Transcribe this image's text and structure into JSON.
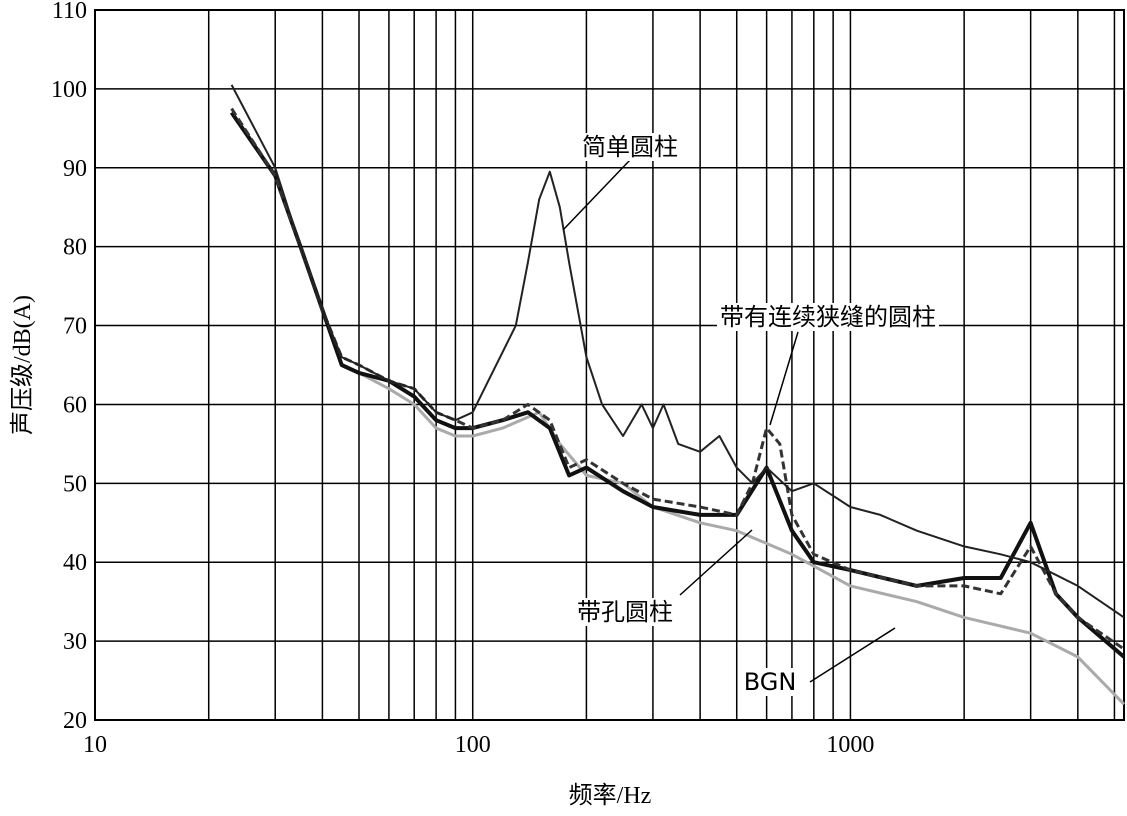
{
  "chart_data": {
    "type": "line",
    "xlabel": "频率/Hz",
    "ylabel": "声压级/dB(A)",
    "xscale": "log",
    "xlim": [
      10,
      5300
    ],
    "ylim": [
      20,
      110
    ],
    "xticks": [
      10,
      100,
      1000
    ],
    "xminor": [
      20,
      30,
      40,
      50,
      60,
      70,
      80,
      90,
      200,
      300,
      400,
      500,
      600,
      700,
      800,
      900,
      2000,
      3000,
      4000,
      5000
    ],
    "yticks": [
      20,
      30,
      40,
      50,
      60,
      70,
      80,
      90,
      100,
      110
    ],
    "grid": true,
    "series": [
      {
        "name": "简单圆柱",
        "color": "#222222",
        "width": 2,
        "dash": false,
        "x": [
          23,
          30,
          35,
          40,
          45,
          50,
          60,
          70,
          80,
          90,
          100,
          110,
          130,
          140,
          150,
          160,
          170,
          180,
          200,
          220,
          250,
          280,
          300,
          320,
          350,
          400,
          450,
          500,
          550,
          600,
          700,
          800,
          1000,
          1200,
          1500,
          2000,
          2500,
          3000,
          4000,
          5300
        ],
        "values": [
          100.5,
          90,
          80,
          72,
          66,
          65,
          63,
          62,
          59,
          58,
          59,
          63,
          70,
          78,
          86,
          89.5,
          85,
          78,
          66,
          60,
          56,
          60,
          57,
          60,
          55,
          54,
          56,
          52,
          50,
          52,
          49,
          50,
          47,
          46,
          44,
          42,
          41,
          40,
          37,
          33
        ]
      },
      {
        "name": "带有连续狭缝的圆柱",
        "color": "#333333",
        "width": 3,
        "dash": true,
        "x": [
          23,
          30,
          35,
          40,
          45,
          50,
          60,
          70,
          80,
          90,
          100,
          120,
          140,
          160,
          180,
          200,
          250,
          300,
          400,
          500,
          550,
          600,
          650,
          700,
          800,
          1000,
          1500,
          2000,
          2500,
          3000,
          3500,
          4000,
          5300
        ],
        "values": [
          97.5,
          89,
          80,
          72,
          66,
          65,
          63,
          62,
          59,
          58,
          57,
          58,
          60,
          58,
          52,
          53,
          50,
          48,
          47,
          46,
          50,
          57,
          55,
          46,
          41,
          39,
          37,
          37,
          36,
          42,
          36,
          33,
          29
        ]
      },
      {
        "name": "带孔圆柱",
        "color": "#111111",
        "width": 4,
        "dash": false,
        "x": [
          23,
          30,
          35,
          40,
          45,
          50,
          60,
          70,
          80,
          90,
          100,
          120,
          140,
          160,
          180,
          200,
          250,
          300,
          400,
          500,
          600,
          700,
          800,
          1000,
          1500,
          2000,
          2500,
          3000,
          3500,
          4000,
          5300
        ],
        "values": [
          97,
          89,
          80,
          72,
          65,
          64,
          63,
          61,
          58,
          57,
          57,
          58,
          59,
          57,
          51,
          52,
          49,
          47,
          46,
          46,
          52,
          44,
          40,
          39,
          37,
          38,
          38,
          45,
          36,
          33,
          28
        ]
      },
      {
        "name": "BGN",
        "color": "#aaaaaa",
        "width": 3,
        "dash": false,
        "x": [
          23,
          30,
          35,
          40,
          45,
          50,
          60,
          70,
          80,
          90,
          100,
          120,
          150,
          170,
          200,
          250,
          300,
          400,
          500,
          700,
          1000,
          1500,
          2000,
          3000,
          4000,
          5300
        ],
        "values": [
          97,
          89,
          80,
          72,
          65,
          64,
          62,
          60,
          57,
          56,
          56,
          57,
          59,
          55,
          51,
          50,
          47,
          45,
          44,
          41,
          37,
          35,
          33,
          31,
          28,
          22
        ]
      }
    ]
  }
}
